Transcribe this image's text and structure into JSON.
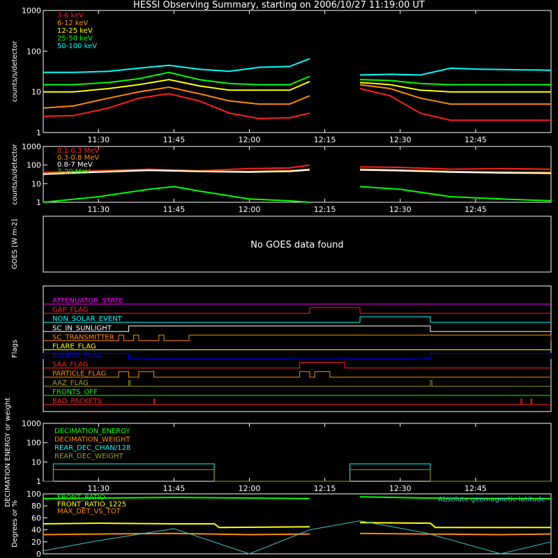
{
  "title": "HESSI Observing Summary, starting on 2006/10/27 11:19:00 UT",
  "chart_data": [
    {
      "type": "line",
      "ylabel": "counts/s/detector",
      "yscale": "log",
      "ylim": [
        1,
        1000
      ],
      "ytick_labels": [
        "1",
        "10",
        "100",
        "1000"
      ],
      "xlim": [
        "11:19",
        "13:00"
      ],
      "xtick_labels": [
        "11:30",
        "11:45",
        "12:00",
        "12:15",
        "12:30",
        "12:45"
      ],
      "data_gap": [
        "12:13",
        "12:22"
      ],
      "series": [
        {
          "name": "3-6 keV",
          "color": "#ff2020",
          "x": [
            "11:19",
            "11:25",
            "11:32",
            "11:38",
            "11:44",
            "11:50",
            "11:56",
            "12:02",
            "12:08",
            "12:12",
            "12:22",
            "12:28",
            "12:34",
            "12:40",
            "12:46",
            "12:52",
            "13:00"
          ],
          "y": [
            2.5,
            2.6,
            4,
            7,
            9,
            6,
            3,
            2.2,
            2.3,
            3,
            12,
            8,
            3,
            2,
            2,
            2,
            2
          ]
        },
        {
          "name": "6-12 keV",
          "color": "#ff8c00",
          "x": [
            "11:19",
            "11:25",
            "11:32",
            "11:38",
            "11:44",
            "11:50",
            "11:56",
            "12:02",
            "12:08",
            "12:12",
            "12:22",
            "12:28",
            "12:34",
            "12:40",
            "12:46",
            "12:52",
            "13:00"
          ],
          "y": [
            4,
            4.5,
            7,
            10,
            13,
            9,
            6,
            5,
            5,
            8,
            15,
            12,
            7,
            5,
            5,
            5,
            5
          ]
        },
        {
          "name": "12-25 keV",
          "color": "#ffff00",
          "x": [
            "11:19",
            "11:25",
            "11:32",
            "11:38",
            "11:44",
            "11:50",
            "11:56",
            "12:02",
            "12:08",
            "12:12",
            "12:22",
            "12:28",
            "12:34",
            "12:40",
            "12:46",
            "12:52",
            "13:00"
          ],
          "y": [
            10,
            10,
            12,
            15,
            20,
            14,
            11,
            11,
            11,
            18,
            17,
            15,
            11,
            10,
            10,
            10,
            10
          ]
        },
        {
          "name": "25-50 keV",
          "color": "#00ff00",
          "x": [
            "11:19",
            "11:25",
            "11:32",
            "11:38",
            "11:44",
            "11:50",
            "11:56",
            "12:02",
            "12:08",
            "12:12",
            "12:22",
            "12:28",
            "12:34",
            "12:40",
            "12:46",
            "12:52",
            "13:00"
          ],
          "y": [
            15,
            15,
            17,
            21,
            30,
            20,
            16,
            15,
            15,
            24,
            20,
            19,
            16,
            15,
            15,
            15,
            15
          ]
        },
        {
          "name": "50-100 keV",
          "color": "#00ffff",
          "x": [
            "11:19",
            "11:25",
            "11:32",
            "11:38",
            "11:44",
            "11:50",
            "11:56",
            "12:02",
            "12:08",
            "12:12",
            "12:22",
            "12:28",
            "12:34",
            "12:40",
            "12:46",
            "12:52",
            "13:00"
          ],
          "y": [
            30,
            30,
            32,
            38,
            45,
            36,
            32,
            40,
            42,
            65,
            26,
            27,
            26,
            38,
            36,
            35,
            34
          ]
        }
      ]
    },
    {
      "type": "line",
      "ylabel": "counts/s/detector",
      "yscale": "log",
      "ylim": [
        1,
        1000
      ],
      "ytick_labels": [
        "1",
        "10",
        "100",
        "1000"
      ],
      "xlim": [
        "11:19",
        "13:00"
      ],
      "xtick_labels": [
        "11:30",
        "11:45",
        "12:00",
        "12:15",
        "12:30",
        "12:45"
      ],
      "data_gap": [
        "12:13",
        "12:22"
      ],
      "series": [
        {
          "name": "0.1-0.3 MeV",
          "color": "#ff2020",
          "x": [
            "11:19",
            "11:30",
            "11:40",
            "11:50",
            "12:00",
            "12:08",
            "12:12",
            "12:22",
            "12:30",
            "12:40",
            "12:50",
            "13:00"
          ],
          "y": [
            40,
            50,
            60,
            50,
            65,
            70,
            100,
            80,
            75,
            60,
            65,
            60
          ]
        },
        {
          "name": "0.3-0.8 MeV",
          "color": "#ff8c00",
          "x": [
            "11:19",
            "11:30",
            "11:40",
            "11:50",
            "12:00",
            "12:08",
            "12:12",
            "12:22",
            "12:30",
            "12:40",
            "12:50",
            "13:00"
          ],
          "y": [
            35,
            45,
            55,
            48,
            45,
            50,
            60,
            60,
            55,
            45,
            42,
            40
          ]
        },
        {
          "name": "0.8-7 MeV",
          "color": "#ffffff",
          "x": [
            "11:19",
            "11:30",
            "11:40",
            "11:50",
            "12:00",
            "12:08",
            "12:12",
            "12:22",
            "12:30",
            "12:40",
            "12:50",
            "13:00"
          ],
          "y": [
            32,
            42,
            52,
            45,
            42,
            46,
            55,
            55,
            50,
            42,
            38,
            36
          ]
        },
        {
          "name": "7-20 MeV",
          "color": "#00ff00",
          "x": [
            "11:19",
            "11:30",
            "11:40",
            "11:45",
            "11:50",
            "12:00",
            "12:08",
            "12:12",
            "12:22",
            "12:30",
            "12:40",
            "12:50",
            "13:00"
          ],
          "y": [
            1,
            2,
            5,
            7,
            4,
            1.5,
            1.2,
            1,
            7,
            5,
            2,
            1.5,
            1.2
          ]
        }
      ]
    },
    {
      "type": "line",
      "ylabel": "GOES [W m-2]",
      "annotation": "No GOES data found",
      "series": []
    },
    {
      "type": "line",
      "ylabel": "Flags",
      "xlim": [
        "11:19",
        "13:00"
      ],
      "series": [
        {
          "name": "ATTENUATOR_STATE",
          "color": "#ff00ff",
          "segments": []
        },
        {
          "name": "GAP_FLAG",
          "color": "#ff2020",
          "segments": [
            [
              "12:12",
              "12:22"
            ]
          ]
        },
        {
          "name": "NON_SOLAR_EVENT",
          "color": "#00ffff",
          "segments": [
            [
              "12:22",
              "12:36"
            ]
          ]
        },
        {
          "name": "SC_IN_SUNLIGHT",
          "color": "#ffffff",
          "segments": [
            [
              "11:36",
              "12:36"
            ]
          ]
        },
        {
          "name": "SC_TRANSMITTER",
          "color": "#ff8c00",
          "segments": [
            [
              "11:34",
              "11:35"
            ],
            [
              "11:37",
              "11:38"
            ],
            [
              "11:42",
              "11:43"
            ],
            [
              "11:48",
              "13:00"
            ]
          ]
        },
        {
          "name": "FLARE_FLAG",
          "color": "#ffff00",
          "segments": []
        },
        {
          "name": "ECLIPSE_FLAG",
          "color": "#0000ff",
          "segments": [
            [
              "11:19",
              "11:36"
            ],
            [
              "12:36",
              "13:00"
            ]
          ]
        },
        {
          "name": "SAA_FLAG",
          "color": "#ff2020",
          "segments": [
            [
              "12:10",
              "12:19"
            ]
          ]
        },
        {
          "name": "PARTICLE_FLAG",
          "color": "#ff8c00",
          "segments": [
            [
              "11:34",
              "11:36"
            ],
            [
              "11:38",
              "11:41"
            ],
            [
              "12:10",
              "12:12"
            ],
            [
              "12:13",
              "12:16"
            ]
          ]
        },
        {
          "name": "AAZ_FLAG",
          "color": "#9c9c2a",
          "segments": [
            [
              "11:36",
              "11:36.3"
            ],
            [
              "12:36",
              "12:36.3"
            ]
          ]
        },
        {
          "name": "FRONTS_OFF",
          "color": "#00ff00",
          "segments": []
        },
        {
          "name": "BAD_PACKETS",
          "color": "#ff2020",
          "segments": [
            [
              "11:41",
              "11:41.2"
            ],
            [
              "12:54",
              "12:54.2"
            ],
            [
              "12:56",
              "12:56.2"
            ]
          ]
        }
      ]
    },
    {
      "type": "line",
      "ylabel": "DECIMATION ENERGY or weight",
      "yscale": "log",
      "ylim": [
        1,
        1000
      ],
      "ytick_labels": [
        "1",
        "10",
        "100",
        "1000"
      ],
      "xlim": [
        "11:19",
        "13:00"
      ],
      "xtick_labels": [
        "11:30",
        "11:45",
        "12:00",
        "12:15",
        "12:30",
        "12:45"
      ],
      "series": [
        {
          "name": "DECIMATION_ENERGY",
          "color": "#00ff00",
          "x": [],
          "y": []
        },
        {
          "name": "DECIMATION_WEIGHT",
          "color": "#ff8c00",
          "x": [],
          "y": []
        },
        {
          "name": "REAR_DEC_CHAN/128",
          "color": "#00ffff",
          "x": [
            "11:19",
            "11:21",
            "11:21",
            "11:37",
            "11:37",
            "11:53",
            "11:53",
            "12:20",
            "12:20",
            "12:36",
            "12:36",
            "13:00"
          ],
          "y": [
            1,
            1,
            8,
            8,
            8,
            8,
            1,
            1,
            8,
            8,
            1,
            1
          ]
        },
        {
          "name": "REAR_DEC_WEIGHT",
          "color": "#9c9c2a",
          "x": [
            "11:19",
            "11:21",
            "11:21",
            "11:53",
            "11:53",
            "12:20",
            "12:20",
            "12:36",
            "12:36",
            "13:00"
          ],
          "y": [
            1,
            1,
            4,
            4,
            1,
            1,
            4,
            4,
            1,
            1
          ]
        }
      ]
    },
    {
      "type": "line",
      "ylabel": "Degrees or %",
      "ylim": [
        0,
        100
      ],
      "ytick_labels": [
        "0",
        "20",
        "40",
        "60",
        "80",
        "100"
      ],
      "xlim": [
        "11:19",
        "13:00"
      ],
      "data_gap": [
        "12:13",
        "12:22"
      ],
      "series": [
        {
          "name": "FRONT_RATIO",
          "color": "#00ff00",
          "x": [
            "11:19",
            "11:30",
            "11:45",
            "12:00",
            "12:12",
            "12:22",
            "12:35",
            "12:50",
            "13:00"
          ],
          "y": [
            92,
            93,
            94,
            93,
            92,
            95,
            93,
            92,
            92
          ]
        },
        {
          "name": "FRONT_RATIO_1225",
          "color": "#ffff00",
          "x": [
            "11:19",
            "11:30",
            "11:45",
            "11:53",
            "11:54",
            "12:12",
            "12:22",
            "12:36",
            "12:37",
            "13:00"
          ],
          "y": [
            50,
            51,
            50,
            50,
            44,
            45,
            52,
            51,
            44,
            44
          ]
        },
        {
          "name": "MAX_DET_VS_TOT",
          "color": "#ff8c00",
          "x": [
            "11:19",
            "11:30",
            "11:45",
            "12:00",
            "12:12",
            "12:22",
            "12:35",
            "12:50",
            "13:00"
          ],
          "y": [
            32,
            33,
            34,
            32,
            33,
            34,
            33,
            32,
            33
          ]
        },
        {
          "name": "Absolute geomagnetic latitude",
          "color": "#40c8c8",
          "x": [
            "11:19",
            "11:30",
            "11:45",
            "12:00",
            "12:12",
            "12:22",
            "12:35",
            "12:50",
            "13:00"
          ],
          "y": [
            5,
            22,
            42,
            0,
            40,
            55,
            35,
            0,
            20
          ]
        }
      ]
    }
  ]
}
